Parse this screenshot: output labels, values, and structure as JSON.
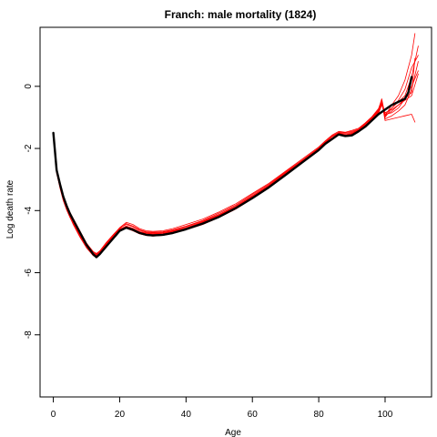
{
  "chart_data": {
    "type": "line",
    "title": "Franch: male mortality (1824)",
    "xlabel": "Age",
    "ylabel": "Log death rate",
    "xlim": [
      -4,
      114
    ],
    "ylim": [
      -10,
      1.9
    ],
    "xticks": [
      0,
      20,
      40,
      60,
      80,
      100
    ],
    "xtick_labels": [
      "0",
      "20",
      "40",
      "60",
      "80",
      "100"
    ],
    "yticks": [
      0,
      -2,
      -4,
      -6,
      -8
    ],
    "ytick_labels": [
      "0",
      "-2",
      "-4",
      "-6",
      "-8"
    ],
    "grid": false,
    "legend": "none",
    "colors": {
      "primary": "#000000",
      "smoothed": "#ff0000"
    },
    "series": [
      {
        "color": "#000000",
        "width": 2.4,
        "x": [
          0,
          1,
          2,
          3,
          4,
          5,
          6,
          8,
          10,
          12,
          13,
          14,
          16,
          18,
          20,
          22,
          24,
          26,
          28,
          30,
          33,
          36,
          40,
          45,
          50,
          55,
          60,
          65,
          70,
          75,
          80,
          82,
          84,
          86,
          88,
          90,
          92,
          94,
          96,
          98,
          100,
          102,
          104,
          106,
          107,
          108
        ],
        "y": [
          -1.5,
          -2.7,
          -3.15,
          -3.55,
          -3.85,
          -4.1,
          -4.3,
          -4.7,
          -5.1,
          -5.4,
          -5.5,
          -5.4,
          -5.15,
          -4.9,
          -4.65,
          -4.55,
          -4.62,
          -4.72,
          -4.78,
          -4.8,
          -4.78,
          -4.72,
          -4.6,
          -4.42,
          -4.2,
          -3.92,
          -3.6,
          -3.25,
          -2.85,
          -2.45,
          -2.05,
          -1.85,
          -1.7,
          -1.55,
          -1.6,
          -1.58,
          -1.45,
          -1.3,
          -1.1,
          -0.9,
          -0.75,
          -0.6,
          -0.5,
          -0.4,
          -0.2,
          0.3
        ]
      },
      {
        "color": "#ff0000",
        "width": 0.8,
        "x": [
          0,
          1,
          2,
          3,
          4,
          5,
          6,
          8,
          10,
          12,
          13,
          14,
          16,
          18,
          20,
          22,
          24,
          26,
          28,
          30,
          33,
          36,
          40,
          45,
          50,
          55,
          60,
          65,
          70,
          75,
          80,
          82,
          84,
          86,
          88,
          90,
          92,
          94,
          96,
          98,
          99,
          100,
          102,
          104,
          106,
          108,
          109
        ],
        "y": [
          -1.5,
          -2.75,
          -3.25,
          -3.65,
          -3.95,
          -4.2,
          -4.45,
          -4.85,
          -5.2,
          -5.45,
          -5.5,
          -5.42,
          -5.12,
          -4.85,
          -4.65,
          -4.57,
          -4.65,
          -4.75,
          -4.8,
          -4.82,
          -4.8,
          -4.74,
          -4.62,
          -4.45,
          -4.22,
          -3.95,
          -3.62,
          -3.27,
          -2.87,
          -2.47,
          -2.07,
          -1.87,
          -1.72,
          -1.57,
          -1.62,
          -1.55,
          -1.45,
          -1.27,
          -1.05,
          -0.8,
          -0.5,
          -1.1,
          -1.05,
          -1.0,
          -0.95,
          -0.9,
          -1.15
        ]
      },
      {
        "color": "#ff0000",
        "width": 0.8,
        "x": [
          0,
          1,
          2,
          3,
          4,
          5,
          6,
          8,
          10,
          12,
          13,
          14,
          16,
          18,
          20,
          22,
          24,
          26,
          28,
          30,
          33,
          36,
          40,
          45,
          50,
          55,
          60,
          65,
          70,
          75,
          80,
          82,
          84,
          86,
          88,
          90,
          92,
          94,
          96,
          98,
          99,
          100,
          102,
          104,
          106,
          108,
          109
        ],
        "y": [
          -1.5,
          -2.65,
          -3.1,
          -3.5,
          -3.8,
          -4.05,
          -4.25,
          -4.65,
          -5.05,
          -5.35,
          -5.42,
          -5.35,
          -5.08,
          -4.82,
          -4.58,
          -4.42,
          -4.5,
          -4.62,
          -4.68,
          -4.7,
          -4.68,
          -4.62,
          -4.5,
          -4.32,
          -4.08,
          -3.82,
          -3.48,
          -3.15,
          -2.76,
          -2.38,
          -1.98,
          -1.78,
          -1.6,
          -1.48,
          -1.5,
          -1.45,
          -1.38,
          -1.2,
          -1.0,
          -0.75,
          -0.4,
          -0.95,
          -0.6,
          -0.3,
          0.2,
          1.0,
          1.7
        ]
      },
      {
        "color": "#ff0000",
        "width": 0.8,
        "x": [
          0,
          1,
          2,
          3,
          4,
          5,
          6,
          8,
          10,
          12,
          13,
          14,
          16,
          18,
          20,
          22,
          24,
          26,
          28,
          30,
          33,
          36,
          40,
          45,
          50,
          55,
          60,
          65,
          70,
          75,
          80,
          82,
          84,
          86,
          88,
          90,
          92,
          94,
          96,
          98,
          99,
          100,
          102,
          104,
          106,
          108,
          110
        ],
        "y": [
          -1.5,
          -2.8,
          -3.22,
          -3.6,
          -3.9,
          -4.12,
          -4.35,
          -4.75,
          -5.1,
          -5.38,
          -5.45,
          -5.38,
          -5.1,
          -4.82,
          -4.6,
          -4.5,
          -4.58,
          -4.68,
          -4.72,
          -4.74,
          -4.72,
          -4.66,
          -4.55,
          -4.36,
          -4.14,
          -3.88,
          -3.55,
          -3.2,
          -2.8,
          -2.42,
          -2.02,
          -1.82,
          -1.67,
          -1.52,
          -1.57,
          -1.52,
          -1.42,
          -1.25,
          -1.05,
          -0.85,
          -0.55,
          -0.9,
          -0.85,
          -0.7,
          -0.4,
          0.0,
          0.5
        ]
      },
      {
        "color": "#ff0000",
        "width": 0.8,
        "x": [
          0,
          1,
          2,
          3,
          4,
          5,
          6,
          8,
          10,
          12,
          13,
          14,
          16,
          18,
          20,
          22,
          24,
          26,
          28,
          30,
          33,
          36,
          40,
          45,
          50,
          55,
          60,
          65,
          70,
          75,
          80,
          82,
          84,
          86,
          88,
          90,
          92,
          94,
          96,
          98,
          99,
          100,
          102,
          104,
          106,
          108,
          109
        ],
        "y": [
          -1.5,
          -2.7,
          -3.18,
          -3.58,
          -3.88,
          -4.15,
          -4.38,
          -4.8,
          -5.15,
          -5.42,
          -5.47,
          -5.4,
          -5.1,
          -4.88,
          -4.65,
          -4.55,
          -4.6,
          -4.72,
          -4.78,
          -4.8,
          -4.77,
          -4.7,
          -4.58,
          -4.4,
          -4.18,
          -3.9,
          -3.58,
          -3.22,
          -2.83,
          -2.44,
          -2.04,
          -1.84,
          -1.69,
          -1.54,
          -1.59,
          -1.56,
          -1.44,
          -1.28,
          -1.08,
          -0.88,
          -0.6,
          -0.85,
          -0.75,
          -0.6,
          -0.4,
          -0.2,
          0.9
        ]
      },
      {
        "color": "#ff0000",
        "width": 0.8,
        "x": [
          0,
          1,
          2,
          3,
          4,
          5,
          6,
          8,
          10,
          12,
          13,
          14,
          16,
          18,
          20,
          22,
          24,
          26,
          28,
          30,
          33,
          36,
          40,
          45,
          50,
          55,
          60,
          65,
          70,
          75,
          80,
          82,
          84,
          86,
          88,
          90,
          92,
          94,
          96,
          98,
          99,
          100,
          102,
          104,
          106,
          108,
          110
        ],
        "y": [
          -1.5,
          -2.72,
          -3.2,
          -3.55,
          -3.85,
          -4.08,
          -4.3,
          -4.72,
          -5.08,
          -5.32,
          -5.4,
          -5.32,
          -5.05,
          -4.8,
          -4.55,
          -4.38,
          -4.45,
          -4.58,
          -4.65,
          -4.67,
          -4.65,
          -4.58,
          -4.45,
          -4.28,
          -4.04,
          -3.78,
          -3.45,
          -3.12,
          -2.73,
          -2.34,
          -1.95,
          -1.75,
          -1.57,
          -1.45,
          -1.48,
          -1.42,
          -1.35,
          -1.18,
          -0.98,
          -0.72,
          -0.45,
          -1.0,
          -0.7,
          -0.45,
          -0.1,
          0.6,
          1.0
        ]
      },
      {
        "color": "#ff0000",
        "width": 0.8,
        "x": [
          0,
          1,
          2,
          3,
          4,
          5,
          6,
          8,
          10,
          12,
          13,
          14,
          16,
          18,
          20,
          22,
          24,
          26,
          28,
          30,
          33,
          36,
          40,
          45,
          50,
          55,
          60,
          65,
          70,
          75,
          80,
          82,
          84,
          86,
          88,
          90,
          92,
          94,
          96,
          98,
          99,
          100,
          102,
          104,
          106,
          108,
          110
        ],
        "y": [
          -1.5,
          -2.78,
          -3.28,
          -3.68,
          -3.98,
          -4.22,
          -4.42,
          -4.82,
          -5.18,
          -5.4,
          -5.46,
          -5.4,
          -5.12,
          -4.86,
          -4.62,
          -4.52,
          -4.6,
          -4.7,
          -4.76,
          -4.78,
          -4.76,
          -4.7,
          -4.58,
          -4.4,
          -4.17,
          -3.9,
          -3.57,
          -3.22,
          -2.83,
          -2.43,
          -2.03,
          -1.83,
          -1.68,
          -1.53,
          -1.58,
          -1.53,
          -1.43,
          -1.27,
          -1.07,
          -0.83,
          -0.5,
          -1.05,
          -0.95,
          -0.8,
          -0.6,
          -0.1,
          0.8
        ]
      },
      {
        "color": "#ff0000",
        "width": 0.8,
        "x": [
          0,
          1,
          2,
          3,
          4,
          5,
          6,
          8,
          10,
          12,
          13,
          14,
          16,
          18,
          20,
          22,
          24,
          26,
          28,
          30,
          33,
          36,
          40,
          45,
          50,
          55,
          60,
          65,
          70,
          75,
          80,
          82,
          84,
          86,
          88,
          90,
          92,
          94,
          96,
          98,
          99,
          100,
          102,
          104,
          106,
          108,
          110
        ],
        "y": [
          -1.5,
          -2.68,
          -3.12,
          -3.52,
          -3.82,
          -4.06,
          -4.28,
          -4.68,
          -5.05,
          -5.32,
          -5.38,
          -5.3,
          -5.02,
          -4.78,
          -4.55,
          -4.45,
          -4.52,
          -4.64,
          -4.7,
          -4.72,
          -4.7,
          -4.64,
          -4.52,
          -4.34,
          -4.12,
          -3.85,
          -3.52,
          -3.18,
          -2.78,
          -2.4,
          -2.0,
          -1.8,
          -1.62,
          -1.5,
          -1.53,
          -1.48,
          -1.4,
          -1.22,
          -1.02,
          -0.78,
          -0.45,
          -0.95,
          -0.8,
          -0.6,
          -0.45,
          -0.3,
          0.4
        ]
      },
      {
        "color": "#ff0000",
        "width": 0.8,
        "x": [
          0,
          1,
          2,
          3,
          4,
          5,
          6,
          8,
          10,
          12,
          13,
          14,
          16,
          18,
          20,
          22,
          24,
          26,
          28,
          30,
          33,
          36,
          40,
          45,
          50,
          55,
          60,
          65,
          70,
          75,
          80,
          82,
          84,
          86,
          88,
          90,
          92,
          94,
          96,
          98,
          99,
          100,
          102,
          104,
          106,
          108,
          110
        ],
        "y": [
          -1.5,
          -2.74,
          -3.2,
          -3.6,
          -3.9,
          -4.14,
          -4.36,
          -4.76,
          -5.12,
          -5.38,
          -5.44,
          -5.36,
          -5.08,
          -4.84,
          -4.6,
          -4.5,
          -4.57,
          -4.68,
          -4.74,
          -4.76,
          -4.74,
          -4.68,
          -4.56,
          -4.38,
          -4.15,
          -3.88,
          -3.55,
          -3.2,
          -2.81,
          -2.41,
          -2.01,
          -1.81,
          -1.66,
          -1.51,
          -1.56,
          -1.51,
          -1.41,
          -1.25,
          -1.05,
          -0.8,
          -0.48,
          -0.9,
          -0.7,
          -0.5,
          -0.3,
          0.3,
          1.3
        ]
      }
    ]
  }
}
